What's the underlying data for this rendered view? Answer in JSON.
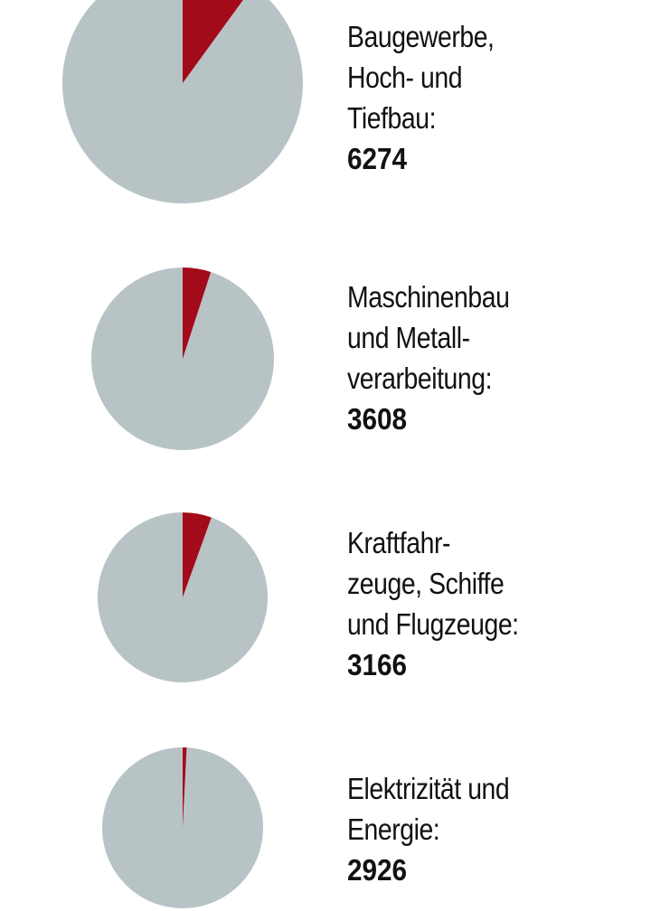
{
  "colors": {
    "share": "#a30a1a",
    "rest": "#b8c3c6",
    "text": "#111111"
  },
  "chart_data": {
    "type": "pie",
    "series": [
      {
        "category_lines": [
          "Baugewerbe,",
          "Hoch- und",
          "Tiefbau:"
        ],
        "value": "6274",
        "share_fraction": 0.1
      },
      {
        "category_lines": [
          "Maschinenbau",
          "und Metall-",
          "verarbeitung:"
        ],
        "value": "3608",
        "share_fraction": 0.05
      },
      {
        "category_lines": [
          "Kraftfahr-",
          "zeuge, Schiffe",
          "und Flugzeuge:"
        ],
        "value": "3166",
        "share_fraction": 0.055
      },
      {
        "category_lines": [
          "Elektrizität und",
          "Energie:"
        ],
        "value": "2926",
        "share_fraction": 0.008
      }
    ]
  }
}
